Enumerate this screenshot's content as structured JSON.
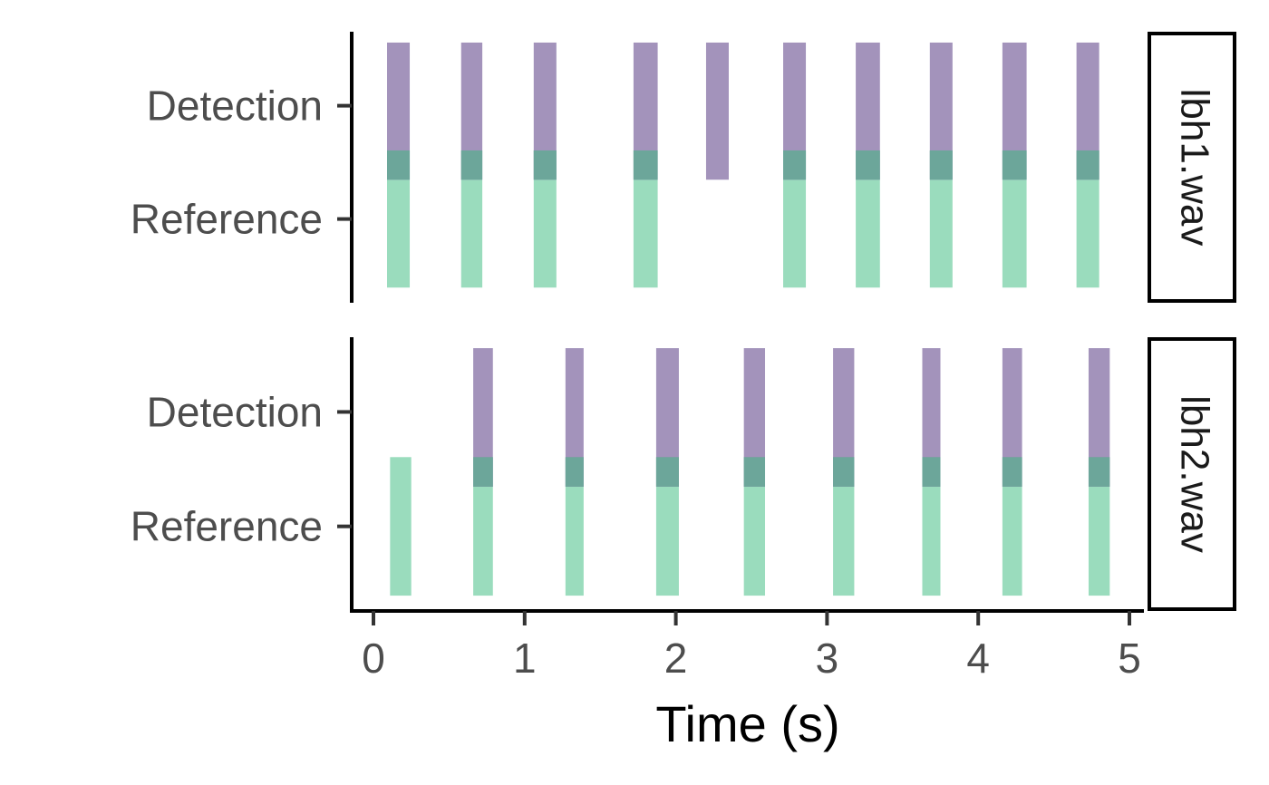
{
  "chart_data": {
    "type": "bar",
    "subtype": "faceted-segment-timeline",
    "title": "",
    "xlabel": "Time (s)",
    "ylabel": "",
    "xlim": [
      -0.15,
      5.1
    ],
    "x_ticks": [
      "0",
      "1",
      "2",
      "3",
      "4",
      "5"
    ],
    "categories": [
      "Reference",
      "Detection"
    ],
    "grid": false,
    "legend": "none",
    "colors": {
      "Detection": "#a393bb",
      "Reference": "#9adcbd",
      "overlap": "#6ca69a",
      "axis": "#000000",
      "tick": "#333333"
    },
    "facets": [
      {
        "label": "lbh1.wav",
        "series": [
          {
            "category": "Detection",
            "segments": [
              [
                0.09,
                0.24
              ],
              [
                0.58,
                0.72
              ],
              [
                1.06,
                1.21
              ],
              [
                1.72,
                1.88
              ],
              [
                2.2,
                2.35
              ],
              [
                2.71,
                2.86
              ],
              [
                3.19,
                3.35
              ],
              [
                3.68,
                3.83
              ],
              [
                4.16,
                4.32
              ],
              [
                4.65,
                4.8
              ]
            ]
          },
          {
            "category": "Reference",
            "segments": [
              [
                0.09,
                0.24
              ],
              [
                0.58,
                0.72
              ],
              [
                1.06,
                1.21
              ],
              [
                1.72,
                1.88
              ],
              [
                2.71,
                2.86
              ],
              [
                3.19,
                3.35
              ],
              [
                3.68,
                3.83
              ],
              [
                4.16,
                4.32
              ],
              [
                4.65,
                4.8
              ]
            ]
          }
        ]
      },
      {
        "label": "lbh2.wav",
        "series": [
          {
            "category": "Detection",
            "segments": [
              [
                0.66,
                0.79
              ],
              [
                1.27,
                1.39
              ],
              [
                1.87,
                2.02
              ],
              [
                2.45,
                2.59
              ],
              [
                3.04,
                3.18
              ],
              [
                3.63,
                3.75
              ],
              [
                4.16,
                4.29
              ],
              [
                4.73,
                4.87
              ]
            ]
          },
          {
            "category": "Reference",
            "segments": [
              [
                0.11,
                0.25
              ],
              [
                0.66,
                0.79
              ],
              [
                1.27,
                1.39
              ],
              [
                1.87,
                2.02
              ],
              [
                2.45,
                2.59
              ],
              [
                3.04,
                3.18
              ],
              [
                3.63,
                3.75
              ],
              [
                4.16,
                4.29
              ],
              [
                4.73,
                4.87
              ]
            ]
          }
        ]
      }
    ]
  }
}
